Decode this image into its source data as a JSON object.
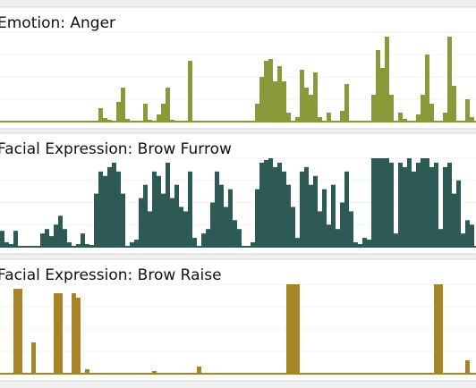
{
  "chart_data": [
    {
      "type": "bar",
      "title": "Emotion: Anger",
      "color": "#8a9a3a",
      "ylim": [
        0,
        100
      ],
      "yticks": [
        0,
        25,
        50,
        75,
        100
      ],
      "grid": true,
      "values": [
        0,
        0,
        0,
        0,
        0,
        0,
        0,
        0,
        0,
        0,
        0,
        0,
        0,
        0,
        0,
        0,
        0,
        0,
        0,
        0,
        0,
        0,
        15,
        4,
        2,
        0,
        22,
        38,
        3,
        0,
        0,
        0,
        20,
        2,
        0,
        8,
        20,
        38,
        2,
        0,
        0,
        0,
        68,
        0,
        0,
        0,
        0,
        0,
        0,
        0,
        0,
        0,
        0,
        0,
        0,
        0,
        0,
        20,
        50,
        68,
        70,
        45,
        62,
        45,
        10,
        0,
        5,
        58,
        38,
        30,
        55,
        5,
        0,
        10,
        0,
        0,
        12,
        42,
        0,
        0,
        0,
        0,
        0,
        30,
        80,
        60,
        95,
        30,
        0,
        10,
        3,
        0,
        0,
        8,
        30,
        75,
        20,
        0,
        0,
        10,
        95,
        40,
        0,
        0,
        25,
        5
      ]
    },
    {
      "type": "bar",
      "title": "Facial Expression: Brow Furrow",
      "color": "#2d5a55",
      "ylim": [
        0,
        100
      ],
      "yticks": [
        0,
        25,
        50,
        75,
        100
      ],
      "grid": true,
      "values": [
        18,
        5,
        3,
        18,
        0,
        0,
        0,
        0,
        0,
        15,
        20,
        12,
        25,
        35,
        20,
        5,
        0,
        3,
        15,
        3,
        2,
        60,
        85,
        80,
        90,
        95,
        85,
        60,
        0,
        5,
        8,
        55,
        70,
        40,
        85,
        80,
        60,
        95,
        55,
        70,
        45,
        40,
        85,
        10,
        0,
        15,
        20,
        50,
        85,
        70,
        45,
        65,
        30,
        20,
        0,
        0,
        5,
        65,
        95,
        98,
        100,
        90,
        95,
        85,
        70,
        45,
        10,
        85,
        90,
        70,
        80,
        40,
        65,
        25,
        70,
        20,
        50,
        85,
        40,
        5,
        3,
        10,
        8,
        100,
        100,
        100,
        100,
        95,
        15,
        95,
        90,
        100,
        85,
        95,
        100,
        100,
        90,
        95,
        20,
        90,
        95,
        60,
        75,
        15,
        30,
        25
      ]
    },
    {
      "type": "bar",
      "title": "Facial Expression: Brow Raise",
      "color": "#a88428",
      "ylim": [
        0,
        100
      ],
      "yticks": [
        0,
        25,
        50,
        75,
        100
      ],
      "grid": true,
      "values": [
        0,
        0,
        0,
        95,
        95,
        0,
        0,
        35,
        0,
        0,
        0,
        0,
        90,
        90,
        0,
        0,
        90,
        85,
        0,
        5,
        0,
        0,
        0,
        0,
        0,
        0,
        0,
        0,
        0,
        0,
        0,
        0,
        0,
        0,
        3,
        0,
        0,
        0,
        0,
        0,
        0,
        0,
        0,
        0,
        8,
        0,
        0,
        0,
        0,
        0,
        0,
        0,
        0,
        0,
        0,
        0,
        0,
        0,
        0,
        0,
        0,
        0,
        0,
        0,
        100,
        100,
        100,
        0,
        0,
        0,
        0,
        0,
        0,
        0,
        0,
        0,
        0,
        0,
        0,
        0,
        0,
        0,
        0,
        0,
        0,
        0,
        0,
        0,
        0,
        0,
        0,
        0,
        0,
        0,
        0,
        0,
        0,
        100,
        100,
        0,
        0,
        0,
        0,
        0,
        15,
        0
      ]
    }
  ]
}
